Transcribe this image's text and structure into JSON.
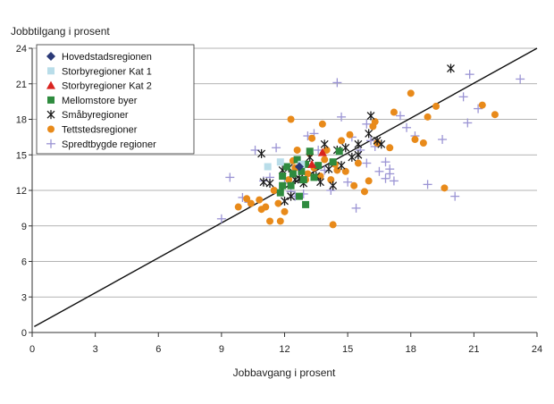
{
  "chart_data": {
    "type": "scatter",
    "xlabel": "Jobbavgang i prosent",
    "ylabel": "Jobbtilgang i prosent",
    "xlim": [
      0,
      24
    ],
    "ylim": [
      0,
      24
    ],
    "xticks": [
      0,
      3,
      6,
      9,
      12,
      15,
      18,
      21,
      24
    ],
    "yticks": [
      0,
      3,
      6,
      9,
      12,
      15,
      18,
      21,
      24
    ],
    "grid": "horizontal",
    "legend_position": "top-left",
    "diagonal_line": {
      "x": [
        0.1,
        24
      ],
      "y": [
        0.5,
        24
      ]
    },
    "series": [
      {
        "name": "Hovedstadsregionen",
        "marker": "diamond",
        "color": "#2b3a78",
        "points": [
          [
            12.7,
            14.0
          ]
        ]
      },
      {
        "name": "Storbyregioner Kat 1",
        "marker": "square",
        "color": "#b9dde9",
        "points": [
          [
            11.2,
            14.0
          ],
          [
            11.8,
            14.4
          ],
          [
            12.8,
            14.2
          ]
        ]
      },
      {
        "name": "Storbyregioner Kat 2",
        "marker": "triangle",
        "color": "#d9231f",
        "points": [
          [
            13.3,
            14.2
          ],
          [
            13.8,
            15.2
          ]
        ]
      },
      {
        "name": "Mellomstore byer",
        "marker": "square",
        "color": "#2e8b3e",
        "points": [
          [
            11.8,
            11.8
          ],
          [
            11.9,
            12.4
          ],
          [
            11.9,
            13.2
          ],
          [
            12.1,
            14.0
          ],
          [
            12.3,
            12.4
          ],
          [
            12.4,
            13.4
          ],
          [
            12.6,
            14.6
          ],
          [
            12.7,
            11.5
          ],
          [
            12.9,
            12.9
          ],
          [
            13.0,
            14.2
          ],
          [
            13.2,
            15.3
          ],
          [
            13.4,
            13.1
          ],
          [
            13.6,
            14.1
          ],
          [
            12.8,
            13.6
          ],
          [
            14.3,
            14.4
          ],
          [
            14.6,
            15.3
          ],
          [
            13.0,
            10.8
          ]
        ]
      },
      {
        "name": "Småbyregioner",
        "marker": "asterisk",
        "color": "#1a1a1a",
        "points": [
          [
            10.9,
            15.1
          ],
          [
            11.0,
            12.7
          ],
          [
            11.3,
            12.6
          ],
          [
            11.9,
            13.7
          ],
          [
            12.0,
            11.1
          ],
          [
            12.2,
            13.9
          ],
          [
            12.3,
            11.5
          ],
          [
            12.5,
            12.9
          ],
          [
            12.7,
            13.0
          ],
          [
            12.9,
            12.6
          ],
          [
            13.2,
            14.8
          ],
          [
            13.5,
            13.2
          ],
          [
            13.7,
            12.7
          ],
          [
            13.9,
            15.9
          ],
          [
            14.1,
            13.8
          ],
          [
            14.3,
            12.4
          ],
          [
            14.5,
            15.4
          ],
          [
            14.9,
            15.6
          ],
          [
            15.2,
            14.8
          ],
          [
            15.5,
            15.9
          ],
          [
            15.5,
            15.0
          ],
          [
            16.0,
            16.8
          ],
          [
            16.1,
            18.3
          ],
          [
            16.4,
            16.2
          ],
          [
            16.6,
            15.9
          ],
          [
            19.9,
            22.3
          ],
          [
            14.7,
            14.1
          ]
        ]
      },
      {
        "name": "Tettstedsregioner",
        "marker": "circle",
        "color": "#e88a1a",
        "points": [
          [
            9.8,
            10.6
          ],
          [
            10.2,
            11.3
          ],
          [
            10.4,
            10.9
          ],
          [
            10.8,
            11.2
          ],
          [
            10.9,
            10.4
          ],
          [
            11.1,
            10.6
          ],
          [
            11.3,
            9.4
          ],
          [
            11.5,
            12.0
          ],
          [
            11.7,
            10.9
          ],
          [
            11.8,
            9.4
          ],
          [
            12.0,
            10.2
          ],
          [
            12.2,
            12.9
          ],
          [
            12.3,
            18.0
          ],
          [
            12.5,
            13.9
          ],
          [
            12.6,
            15.4
          ],
          [
            12.8,
            13.6
          ],
          [
            13.0,
            12.9
          ],
          [
            13.1,
            13.4
          ],
          [
            13.2,
            15.1
          ],
          [
            13.3,
            16.4
          ],
          [
            13.4,
            13.9
          ],
          [
            13.6,
            14.1
          ],
          [
            13.7,
            13.2
          ],
          [
            13.8,
            17.6
          ],
          [
            14.0,
            15.4
          ],
          [
            14.2,
            12.9
          ],
          [
            14.3,
            9.1
          ],
          [
            14.4,
            14.2
          ],
          [
            14.5,
            13.7
          ],
          [
            14.7,
            16.2
          ],
          [
            14.9,
            13.6
          ],
          [
            15.1,
            16.7
          ],
          [
            15.3,
            12.4
          ],
          [
            15.5,
            14.3
          ],
          [
            15.8,
            11.9
          ],
          [
            16.0,
            12.8
          ],
          [
            16.2,
            17.4
          ],
          [
            16.3,
            17.8
          ],
          [
            16.4,
            16.0
          ],
          [
            17.0,
            15.6
          ],
          [
            17.2,
            18.6
          ],
          [
            18.0,
            20.2
          ],
          [
            18.2,
            16.3
          ],
          [
            18.6,
            16.0
          ],
          [
            18.8,
            18.2
          ],
          [
            19.2,
            19.1
          ],
          [
            19.6,
            12.2
          ],
          [
            21.4,
            19.2
          ],
          [
            22.0,
            18.4
          ],
          [
            12.4,
            14.5
          ],
          [
            13.9,
            14.6
          ]
        ]
      },
      {
        "name": "Spredtbygde regioner",
        "marker": "plus",
        "color": "#9b94d4",
        "points": [
          [
            9.0,
            9.6
          ],
          [
            9.4,
            13.1
          ],
          [
            10.0,
            11.4
          ],
          [
            10.3,
            11.0
          ],
          [
            10.6,
            15.4
          ],
          [
            11.0,
            12.8
          ],
          [
            11.3,
            13.1
          ],
          [
            11.6,
            15.6
          ],
          [
            12.0,
            12.6
          ],
          [
            12.3,
            11.9
          ],
          [
            12.5,
            11.5
          ],
          [
            12.9,
            11.7
          ],
          [
            13.1,
            16.6
          ],
          [
            13.4,
            16.8
          ],
          [
            13.6,
            15.4
          ],
          [
            13.9,
            13.7
          ],
          [
            14.2,
            12.0
          ],
          [
            14.5,
            21.1
          ],
          [
            14.7,
            18.2
          ],
          [
            15.0,
            12.7
          ],
          [
            15.2,
            16.5
          ],
          [
            15.4,
            10.5
          ],
          [
            15.6,
            15.4
          ],
          [
            15.9,
            14.3
          ],
          [
            16.1,
            16.2
          ],
          [
            16.3,
            15.7
          ],
          [
            16.5,
            13.6
          ],
          [
            16.8,
            14.4
          ],
          [
            17.0,
            13.4
          ],
          [
            17.2,
            12.8
          ],
          [
            17.5,
            18.3
          ],
          [
            17.8,
            17.3
          ],
          [
            18.2,
            16.6
          ],
          [
            18.8,
            12.5
          ],
          [
            19.5,
            16.3
          ],
          [
            20.1,
            11.5
          ],
          [
            20.5,
            19.9
          ],
          [
            20.8,
            21.8
          ],
          [
            20.7,
            17.7
          ],
          [
            21.2,
            18.9
          ],
          [
            23.2,
            21.4
          ],
          [
            16.8,
            13.0
          ],
          [
            15.9,
            17.6
          ],
          [
            17.0,
            13.8
          ]
        ]
      }
    ]
  }
}
